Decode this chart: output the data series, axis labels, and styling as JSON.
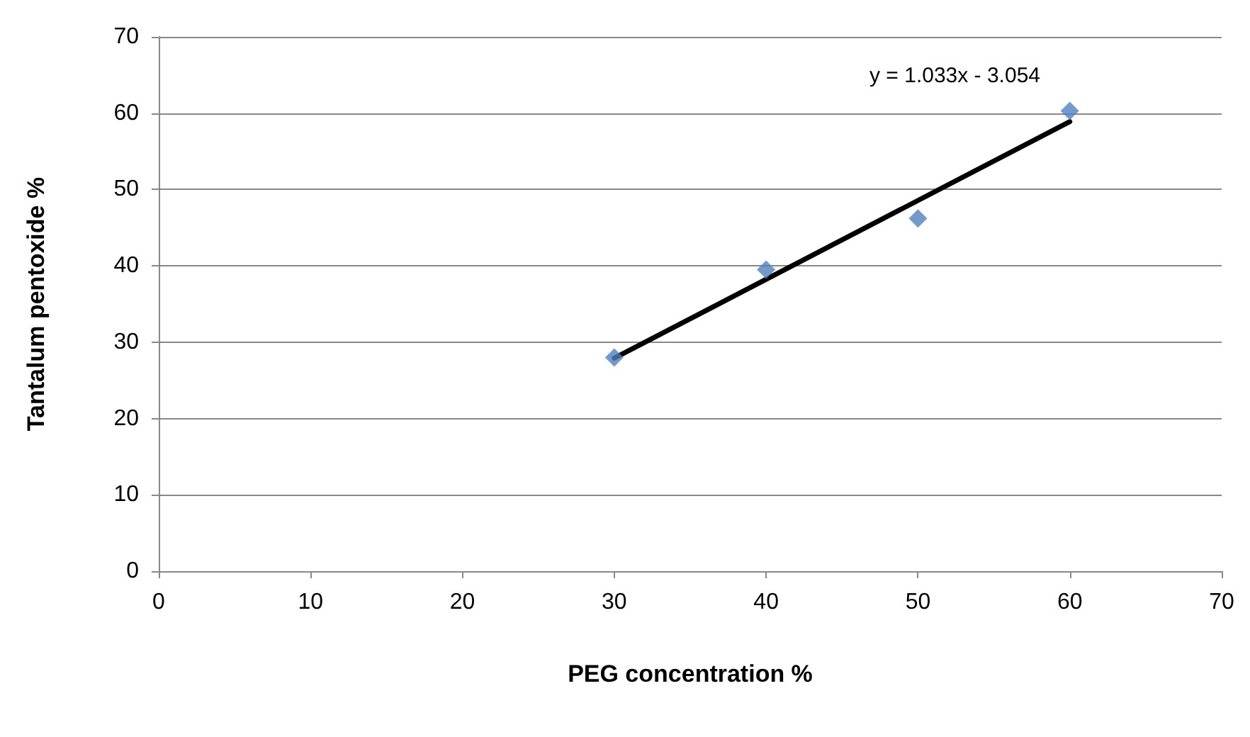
{
  "chart_data": {
    "type": "scatter",
    "xlabel": "PEG concentration %",
    "ylabel": "Tantalum pentoxide %",
    "xlim": [
      0,
      70
    ],
    "xticks": [
      0,
      10,
      20,
      30,
      40,
      50,
      60,
      70
    ],
    "ylim": [
      0,
      70
    ],
    "yticks": [
      0,
      10,
      20,
      30,
      40,
      50,
      60,
      70
    ],
    "grid": "y",
    "marker": "diamond",
    "annotations": [
      "y = 1.033x - 3.054"
    ],
    "series": [
      {
        "color": "#4f81bd",
        "x": [
          30,
          40,
          50,
          60
        ],
        "values": [
          28,
          39.5,
          46.2,
          60.3
        ]
      },
      {
        "type": "line",
        "color": "#000000",
        "x": [
          30,
          60
        ],
        "values": [
          27.9,
          58.9
        ],
        "marker": "none",
        "line_style": "solid"
      }
    ]
  }
}
